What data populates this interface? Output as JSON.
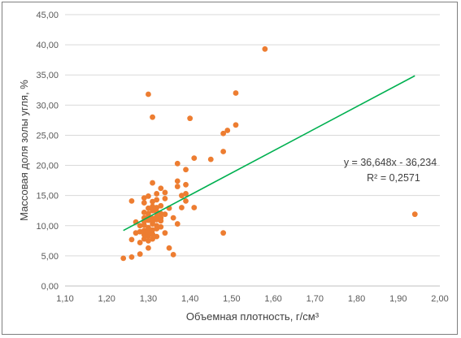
{
  "chart_data": {
    "type": "scatter",
    "xlabel": "Объемная плотность, г/см³",
    "ylabel": "Массовая доля золы угля, %",
    "xlim": [
      1.1,
      2.0
    ],
    "ylim": [
      0,
      45
    ],
    "x_ticks": [
      "1,10",
      "1,20",
      "1,30",
      "1,40",
      "1,50",
      "1,60",
      "1,70",
      "1,80",
      "1,90",
      "2,00"
    ],
    "y_ticks": [
      "0,00",
      "5,00",
      "10,00",
      "15,00",
      "20,00",
      "25,00",
      "30,00",
      "35,00",
      "40,00",
      "45,00"
    ],
    "grid": "horizontal",
    "marker_color": "#ED7D31",
    "trendline_color": "#00B050",
    "trendline": {
      "slope": 36.648,
      "intercept": -36.234,
      "x_range": [
        1.24,
        1.94
      ]
    },
    "annotations": [
      "y = 36,648x - 36,234",
      "R² = 0,2571"
    ],
    "series": [
      {
        "points": [
          [
            1.24,
            4.6
          ],
          [
            1.26,
            4.8
          ],
          [
            1.28,
            5.3
          ],
          [
            1.3,
            6.3
          ],
          [
            1.35,
            6.3
          ],
          [
            1.36,
            5.2
          ],
          [
            1.26,
            7.7
          ],
          [
            1.28,
            7.2
          ],
          [
            1.29,
            7.8
          ],
          [
            1.3,
            7.5
          ],
          [
            1.31,
            7.8
          ],
          [
            1.32,
            8.2
          ],
          [
            1.27,
            8.8
          ],
          [
            1.29,
            8.5
          ],
          [
            1.3,
            8.3
          ],
          [
            1.31,
            8.6
          ],
          [
            1.34,
            8.8
          ],
          [
            1.48,
            8.8
          ],
          [
            1.28,
            9.0
          ],
          [
            1.29,
            9.2
          ],
          [
            1.3,
            9.0
          ],
          [
            1.31,
            9.3
          ],
          [
            1.32,
            9.5
          ],
          [
            1.33,
            9.8
          ],
          [
            1.28,
            10.0
          ],
          [
            1.29,
            10.1
          ],
          [
            1.3,
            9.7
          ],
          [
            1.31,
            10.3
          ],
          [
            1.32,
            10.0
          ],
          [
            1.37,
            10.3
          ],
          [
            1.27,
            10.6
          ],
          [
            1.29,
            10.7
          ],
          [
            1.3,
            10.9
          ],
          [
            1.31,
            10.6
          ],
          [
            1.32,
            11.0
          ],
          [
            1.33,
            10.8
          ],
          [
            1.29,
            11.3
          ],
          [
            1.3,
            11.6
          ],
          [
            1.31,
            11.2
          ],
          [
            1.32,
            11.5
          ],
          [
            1.33,
            11.3
          ],
          [
            1.36,
            11.3
          ],
          [
            1.29,
            12.2
          ],
          [
            1.3,
            12.0
          ],
          [
            1.31,
            12.5
          ],
          [
            1.32,
            12.3
          ],
          [
            1.33,
            12.0
          ],
          [
            1.34,
            11.9
          ],
          [
            1.94,
            11.9
          ],
          [
            1.3,
            12.9
          ],
          [
            1.31,
            13.2
          ],
          [
            1.32,
            13.0
          ],
          [
            1.33,
            13.3
          ],
          [
            1.35,
            12.9
          ],
          [
            1.41,
            13.0
          ],
          [
            1.38,
            13.0
          ],
          [
            1.29,
            13.8
          ],
          [
            1.31,
            14.0
          ],
          [
            1.32,
            14.3
          ],
          [
            1.34,
            14.5
          ],
          [
            1.39,
            14.1
          ],
          [
            1.26,
            14.1
          ],
          [
            1.29,
            14.6
          ],
          [
            1.3,
            14.9
          ],
          [
            1.32,
            15.3
          ],
          [
            1.34,
            15.5
          ],
          [
            1.38,
            15.0
          ],
          [
            1.39,
            15.3
          ],
          [
            1.33,
            16.2
          ],
          [
            1.37,
            16.5
          ],
          [
            1.39,
            16.8
          ],
          [
            1.31,
            17.1
          ],
          [
            1.37,
            17.4
          ],
          [
            1.39,
            19.3
          ],
          [
            1.37,
            20.3
          ],
          [
            1.41,
            21.2
          ],
          [
            1.45,
            21.0
          ],
          [
            1.48,
            22.3
          ],
          [
            1.48,
            25.3
          ],
          [
            1.49,
            25.8
          ],
          [
            1.51,
            26.7
          ],
          [
            1.31,
            28.0
          ],
          [
            1.4,
            27.8
          ],
          [
            1.3,
            31.8
          ],
          [
            1.51,
            32.0
          ],
          [
            1.58,
            39.3
          ]
        ]
      }
    ]
  }
}
